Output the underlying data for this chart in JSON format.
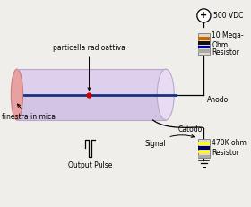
{
  "bg_color": "#f0eeea",
  "tube_fill": "#d4c4e4",
  "tube_fill_light": "#e8dcf4",
  "tube_outline": "#b8a8cc",
  "mica_fill": "#e8a0a0",
  "mica_outline": "#c08080",
  "anode_color": "#1a3080",
  "particle_color": "#cc0000",
  "line_color": "#000000",
  "res1_fill": "#ddd8c8",
  "res1_bands": [
    "#cc6600",
    "#111111",
    "#0000bb",
    "#aaaaaa"
  ],
  "res2_fill": "#ddd8c8",
  "res2_bands": [
    "#ffff00",
    "#000066",
    "#ffff00",
    "#aaaaaa"
  ],
  "label_finestra": "finestra in mica",
  "label_particella": "particella radioattiva",
  "label_anodo": "Anodo",
  "label_catodo": "Catodo",
  "label_signal": "Signal",
  "label_output": "Output Pulse",
  "label_500vdc": "500 VDC",
  "label_10mega": "10 Mega-\nOhm",
  "label_resistor": "Resistor",
  "label_470k": "470K ohm\nResistor",
  "font_color": "#000000",
  "fs": 5.5
}
